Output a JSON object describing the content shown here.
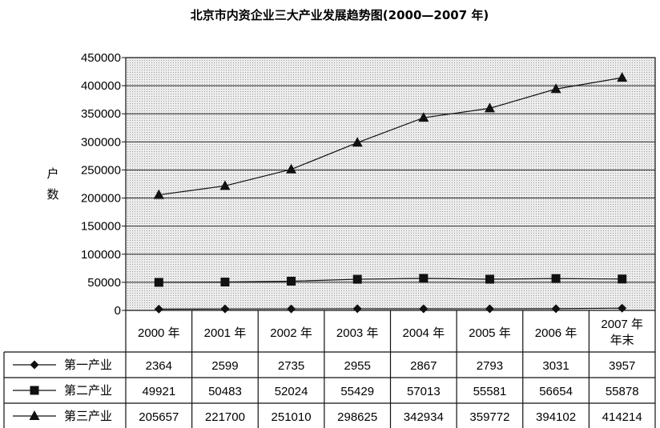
{
  "chart_data": {
    "type": "line",
    "title": "北京市内资企业三大产业发展趋势图(2000—2007 年)",
    "ylabel": "户数",
    "categories": [
      [
        "2000 年"
      ],
      [
        "2001 年"
      ],
      [
        "2002 年"
      ],
      [
        "2003 年"
      ],
      [
        "2004 年"
      ],
      [
        "2005 年"
      ],
      [
        "2006 年"
      ],
      [
        "2007 年",
        "年末"
      ]
    ],
    "yticks": [
      "0",
      "50000",
      "100000",
      "150000",
      "200000",
      "250000",
      "300000",
      "350000",
      "400000",
      "450000"
    ],
    "ylim": [
      0,
      450000
    ],
    "grid": true,
    "legend_placement": "data table below plot",
    "series": [
      {
        "name": "第一产业",
        "marker": "diamond",
        "values": [
          2364,
          2599,
          2735,
          2955,
          2867,
          2793,
          3031,
          3957
        ]
      },
      {
        "name": "第二产业",
        "marker": "square",
        "values": [
          49921,
          50483,
          52024,
          55429,
          57013,
          55581,
          56654,
          55878
        ]
      },
      {
        "name": "第三产业",
        "marker": "triangle",
        "values": [
          205657,
          221700,
          251010,
          298625,
          342934,
          359772,
          394102,
          414214
        ]
      }
    ],
    "colors": {
      "line": "#111111",
      "plot_bg": "#e4e4e4",
      "grid": "#222222"
    }
  }
}
